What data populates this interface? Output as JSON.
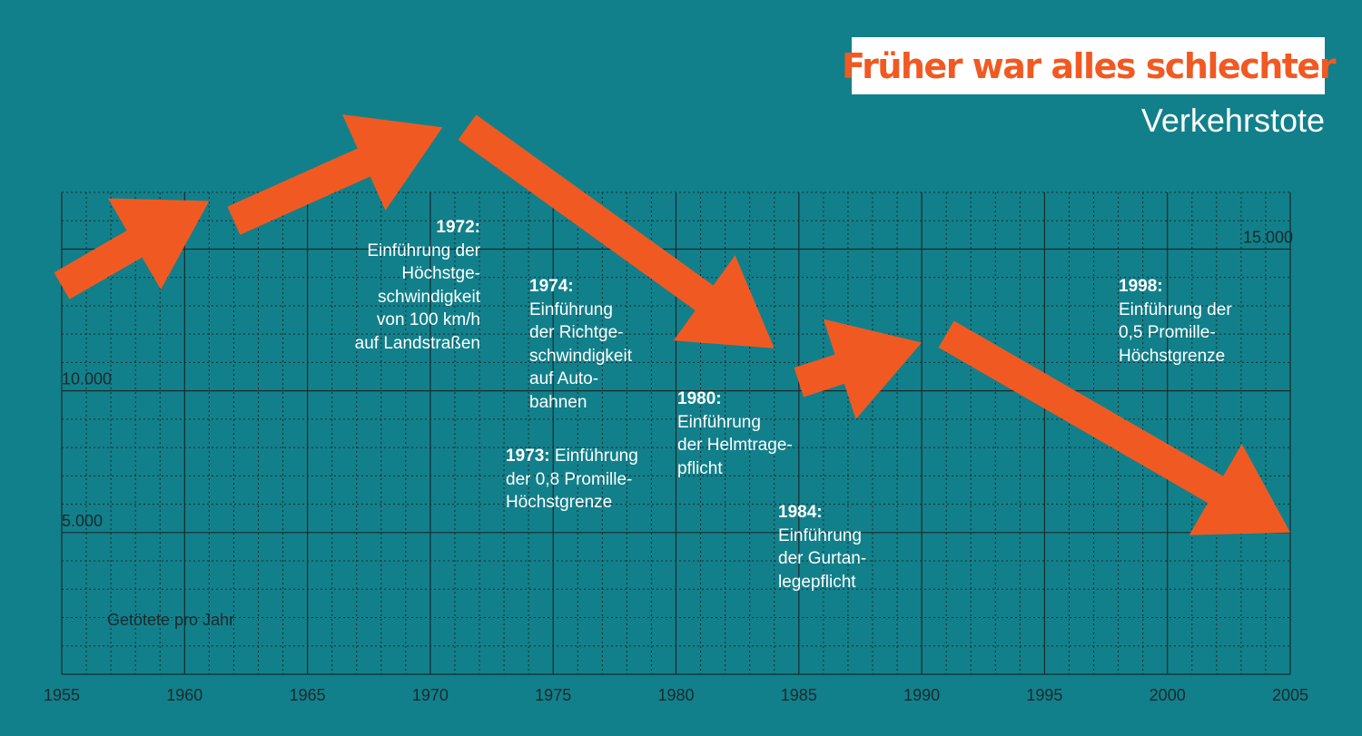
{
  "title": "Früher war alles schlechter",
  "subtitle": "Verkehrstote",
  "colors": {
    "background": "#11808b",
    "accent": "#f05a22",
    "grid": "#1a2a2d",
    "text": "#ffffff"
  },
  "chart_data": {
    "type": "line",
    "ylabel": "Getötete pro Jahr",
    "xlim": [
      1955,
      2005
    ],
    "ylim": [
      0,
      17000
    ],
    "x_ticks": [
      "1955",
      "1960",
      "1965",
      "1970",
      "1975",
      "1980",
      "1985",
      "1990",
      "1995",
      "2000",
      "2005"
    ],
    "y_ticks": [
      {
        "value": 5000,
        "label": "5.000"
      },
      {
        "value": 10000,
        "label": "10.000"
      },
      {
        "value": 15000,
        "label": "15.000"
      }
    ],
    "grid": true,
    "series": [
      {
        "x": [
          1955,
          1961,
          1962,
          1970.5,
          1971.5,
          1984,
          1985,
          1990,
          1991,
          2005
        ],
        "y": [
          13700,
          16700,
          16000,
          19300,
          19300,
          11500,
          10300,
          11700,
          12000,
          5000
        ]
      }
    ]
  },
  "annotations": [
    {
      "year": "1972:",
      "lines": [
        "Einführung der",
        "Höchstge-",
        "schwindigkeit",
        "von 100 km/h",
        "auf Landstraßen"
      ]
    },
    {
      "year": "1974:",
      "lines": [
        "Einführung",
        "der Richtge-",
        "schwindigkeit",
        "auf Auto-",
        "bahnen"
      ]
    },
    {
      "year": "1973:",
      "first": "Einführung",
      "lines": [
        "der 0,8 Promille-",
        "Höchstgrenze"
      ]
    },
    {
      "year": "1980:",
      "lines": [
        "Einführung",
        "der Helmtrage-",
        "pflicht"
      ]
    },
    {
      "year": "1984:",
      "lines": [
        "Einführung",
        "der Gurtan-",
        "legepflicht"
      ]
    },
    {
      "year": "1998:",
      "lines": [
        "Einführung der",
        "0,5 Promille-",
        "Höchstgrenze"
      ]
    }
  ]
}
